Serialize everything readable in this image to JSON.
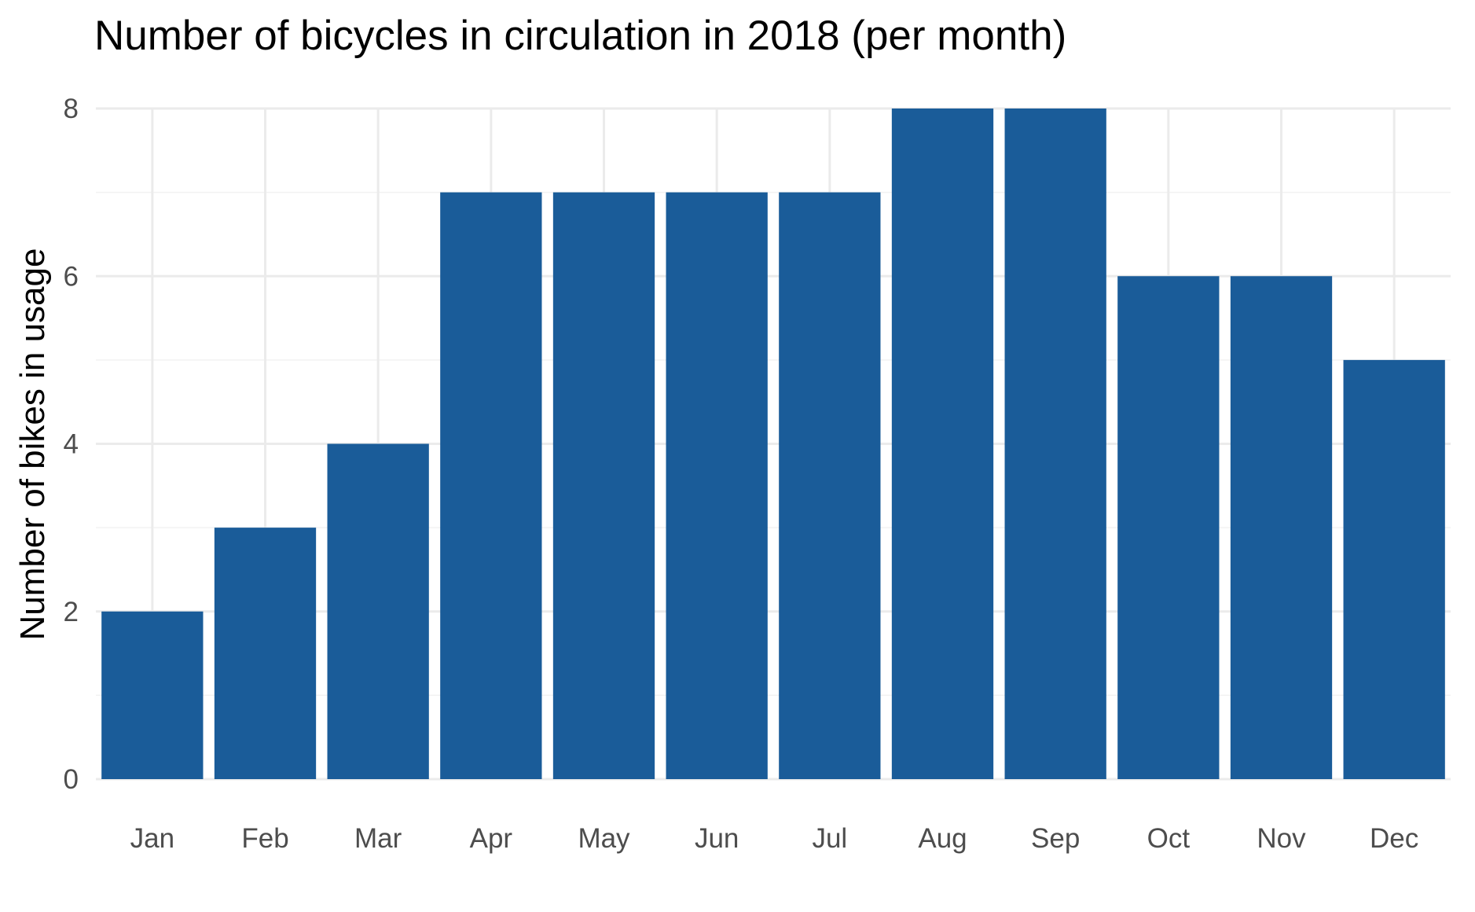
{
  "chart_data": {
    "type": "bar",
    "title": "Number of bicycles in circulation in 2018 (per month)",
    "xlabel": "",
    "ylabel": "Number of bikes in usage",
    "categories": [
      "Jan",
      "Feb",
      "Mar",
      "Apr",
      "May",
      "Jun",
      "Jul",
      "Aug",
      "Sep",
      "Oct",
      "Nov",
      "Dec"
    ],
    "values": [
      2,
      3,
      4,
      7,
      7,
      7,
      7,
      8,
      8,
      6,
      6,
      5
    ],
    "ylim": [
      0,
      8
    ],
    "yticks": [
      "0",
      "2",
      "4",
      "6",
      "8"
    ],
    "grid": true,
    "legend": "none",
    "bar_color": "#1a5c99"
  }
}
